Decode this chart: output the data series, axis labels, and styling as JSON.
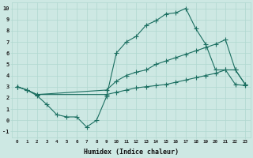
{
  "background_color": "#cde8e3",
  "grid_color": "#b0d8d0",
  "line_color": "#1a6e60",
  "xlim": [
    -0.5,
    23.5
  ],
  "ylim": [
    -1.5,
    10.5
  ],
  "xticks": [
    0,
    1,
    2,
    3,
    4,
    5,
    6,
    7,
    8,
    9,
    10,
    11,
    12,
    13,
    14,
    15,
    16,
    17,
    18,
    19,
    20,
    21,
    22,
    23
  ],
  "yticks": [
    -1,
    0,
    1,
    2,
    3,
    4,
    5,
    6,
    7,
    8,
    9,
    10
  ],
  "xlabel": "Humidex (Indice chaleur)",
  "line1_x": [
    0,
    1,
    2,
    3,
    4,
    5,
    6,
    7,
    8,
    9,
    10,
    11,
    12,
    13,
    14,
    15,
    16,
    17,
    18,
    19,
    20,
    21,
    22,
    23
  ],
  "line1_y": [
    3.0,
    2.7,
    2.2,
    1.4,
    0.5,
    0.3,
    0.3,
    -0.6,
    0.0,
    2.1,
    6.0,
    7.0,
    7.5,
    8.5,
    8.9,
    9.5,
    9.6,
    10.0,
    8.2,
    6.8,
    4.5,
    4.5,
    3.2,
    3.1
  ],
  "line2_x": [
    0,
    1,
    2,
    9,
    10,
    11,
    12,
    13,
    14,
    15,
    16,
    17,
    18,
    19,
    20,
    21,
    22,
    23
  ],
  "line2_y": [
    3.0,
    2.7,
    2.3,
    2.7,
    3.5,
    4.0,
    4.3,
    4.5,
    5.0,
    5.3,
    5.6,
    5.9,
    6.2,
    6.5,
    6.8,
    7.2,
    4.5,
    3.2
  ],
  "line3_x": [
    0,
    1,
    2,
    9,
    10,
    11,
    12,
    13,
    14,
    15,
    16,
    17,
    18,
    19,
    20,
    21,
    22,
    23
  ],
  "line3_y": [
    3.0,
    2.7,
    2.3,
    2.3,
    2.5,
    2.7,
    2.9,
    3.0,
    3.1,
    3.2,
    3.4,
    3.6,
    3.8,
    4.0,
    4.2,
    4.5,
    4.5,
    3.2
  ]
}
